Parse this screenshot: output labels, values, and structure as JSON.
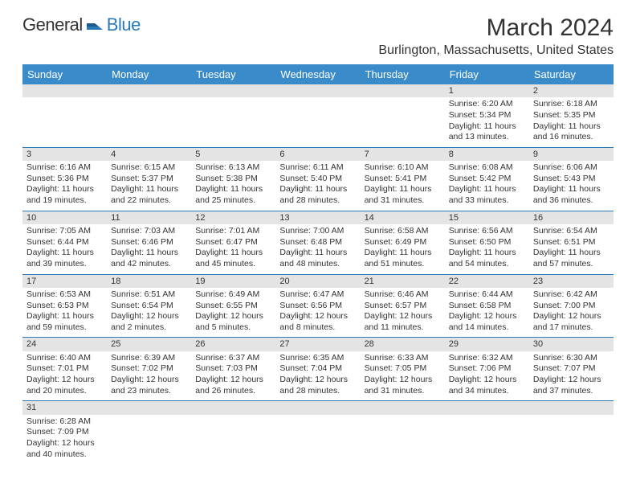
{
  "logo": {
    "text1": "General",
    "text2": "Blue",
    "mark_color": "#2a7ab8"
  },
  "header": {
    "title": "March 2024",
    "location": "Burlington, Massachusetts, United States",
    "title_fontsize": 30,
    "location_fontsize": 16
  },
  "calendar": {
    "type": "table",
    "header_bg": "#3a8bc9",
    "header_text_color": "#ffffff",
    "daynum_bg": "#e4e4e4",
    "row_border_color": "#2a7ab8",
    "cell_fontsize": 10.5,
    "days_of_week": [
      "Sunday",
      "Monday",
      "Tuesday",
      "Wednesday",
      "Thursday",
      "Friday",
      "Saturday"
    ],
    "weeks": [
      [
        null,
        null,
        null,
        null,
        null,
        {
          "n": "1",
          "sunrise": "Sunrise: 6:20 AM",
          "sunset": "Sunset: 5:34 PM",
          "daylight": "Daylight: 11 hours and 13 minutes."
        },
        {
          "n": "2",
          "sunrise": "Sunrise: 6:18 AM",
          "sunset": "Sunset: 5:35 PM",
          "daylight": "Daylight: 11 hours and 16 minutes."
        }
      ],
      [
        {
          "n": "3",
          "sunrise": "Sunrise: 6:16 AM",
          "sunset": "Sunset: 5:36 PM",
          "daylight": "Daylight: 11 hours and 19 minutes."
        },
        {
          "n": "4",
          "sunrise": "Sunrise: 6:15 AM",
          "sunset": "Sunset: 5:37 PM",
          "daylight": "Daylight: 11 hours and 22 minutes."
        },
        {
          "n": "5",
          "sunrise": "Sunrise: 6:13 AM",
          "sunset": "Sunset: 5:38 PM",
          "daylight": "Daylight: 11 hours and 25 minutes."
        },
        {
          "n": "6",
          "sunrise": "Sunrise: 6:11 AM",
          "sunset": "Sunset: 5:40 PM",
          "daylight": "Daylight: 11 hours and 28 minutes."
        },
        {
          "n": "7",
          "sunrise": "Sunrise: 6:10 AM",
          "sunset": "Sunset: 5:41 PM",
          "daylight": "Daylight: 11 hours and 31 minutes."
        },
        {
          "n": "8",
          "sunrise": "Sunrise: 6:08 AM",
          "sunset": "Sunset: 5:42 PM",
          "daylight": "Daylight: 11 hours and 33 minutes."
        },
        {
          "n": "9",
          "sunrise": "Sunrise: 6:06 AM",
          "sunset": "Sunset: 5:43 PM",
          "daylight": "Daylight: 11 hours and 36 minutes."
        }
      ],
      [
        {
          "n": "10",
          "sunrise": "Sunrise: 7:05 AM",
          "sunset": "Sunset: 6:44 PM",
          "daylight": "Daylight: 11 hours and 39 minutes."
        },
        {
          "n": "11",
          "sunrise": "Sunrise: 7:03 AM",
          "sunset": "Sunset: 6:46 PM",
          "daylight": "Daylight: 11 hours and 42 minutes."
        },
        {
          "n": "12",
          "sunrise": "Sunrise: 7:01 AM",
          "sunset": "Sunset: 6:47 PM",
          "daylight": "Daylight: 11 hours and 45 minutes."
        },
        {
          "n": "13",
          "sunrise": "Sunrise: 7:00 AM",
          "sunset": "Sunset: 6:48 PM",
          "daylight": "Daylight: 11 hours and 48 minutes."
        },
        {
          "n": "14",
          "sunrise": "Sunrise: 6:58 AM",
          "sunset": "Sunset: 6:49 PM",
          "daylight": "Daylight: 11 hours and 51 minutes."
        },
        {
          "n": "15",
          "sunrise": "Sunrise: 6:56 AM",
          "sunset": "Sunset: 6:50 PM",
          "daylight": "Daylight: 11 hours and 54 minutes."
        },
        {
          "n": "16",
          "sunrise": "Sunrise: 6:54 AM",
          "sunset": "Sunset: 6:51 PM",
          "daylight": "Daylight: 11 hours and 57 minutes."
        }
      ],
      [
        {
          "n": "17",
          "sunrise": "Sunrise: 6:53 AM",
          "sunset": "Sunset: 6:53 PM",
          "daylight": "Daylight: 11 hours and 59 minutes."
        },
        {
          "n": "18",
          "sunrise": "Sunrise: 6:51 AM",
          "sunset": "Sunset: 6:54 PM",
          "daylight": "Daylight: 12 hours and 2 minutes."
        },
        {
          "n": "19",
          "sunrise": "Sunrise: 6:49 AM",
          "sunset": "Sunset: 6:55 PM",
          "daylight": "Daylight: 12 hours and 5 minutes."
        },
        {
          "n": "20",
          "sunrise": "Sunrise: 6:47 AM",
          "sunset": "Sunset: 6:56 PM",
          "daylight": "Daylight: 12 hours and 8 minutes."
        },
        {
          "n": "21",
          "sunrise": "Sunrise: 6:46 AM",
          "sunset": "Sunset: 6:57 PM",
          "daylight": "Daylight: 12 hours and 11 minutes."
        },
        {
          "n": "22",
          "sunrise": "Sunrise: 6:44 AM",
          "sunset": "Sunset: 6:58 PM",
          "daylight": "Daylight: 12 hours and 14 minutes."
        },
        {
          "n": "23",
          "sunrise": "Sunrise: 6:42 AM",
          "sunset": "Sunset: 7:00 PM",
          "daylight": "Daylight: 12 hours and 17 minutes."
        }
      ],
      [
        {
          "n": "24",
          "sunrise": "Sunrise: 6:40 AM",
          "sunset": "Sunset: 7:01 PM",
          "daylight": "Daylight: 12 hours and 20 minutes."
        },
        {
          "n": "25",
          "sunrise": "Sunrise: 6:39 AM",
          "sunset": "Sunset: 7:02 PM",
          "daylight": "Daylight: 12 hours and 23 minutes."
        },
        {
          "n": "26",
          "sunrise": "Sunrise: 6:37 AM",
          "sunset": "Sunset: 7:03 PM",
          "daylight": "Daylight: 12 hours and 26 minutes."
        },
        {
          "n": "27",
          "sunrise": "Sunrise: 6:35 AM",
          "sunset": "Sunset: 7:04 PM",
          "daylight": "Daylight: 12 hours and 28 minutes."
        },
        {
          "n": "28",
          "sunrise": "Sunrise: 6:33 AM",
          "sunset": "Sunset: 7:05 PM",
          "daylight": "Daylight: 12 hours and 31 minutes."
        },
        {
          "n": "29",
          "sunrise": "Sunrise: 6:32 AM",
          "sunset": "Sunset: 7:06 PM",
          "daylight": "Daylight: 12 hours and 34 minutes."
        },
        {
          "n": "30",
          "sunrise": "Sunrise: 6:30 AM",
          "sunset": "Sunset: 7:07 PM",
          "daylight": "Daylight: 12 hours and 37 minutes."
        }
      ],
      [
        {
          "n": "31",
          "sunrise": "Sunrise: 6:28 AM",
          "sunset": "Sunset: 7:09 PM",
          "daylight": "Daylight: 12 hours and 40 minutes."
        },
        null,
        null,
        null,
        null,
        null,
        null
      ]
    ]
  }
}
